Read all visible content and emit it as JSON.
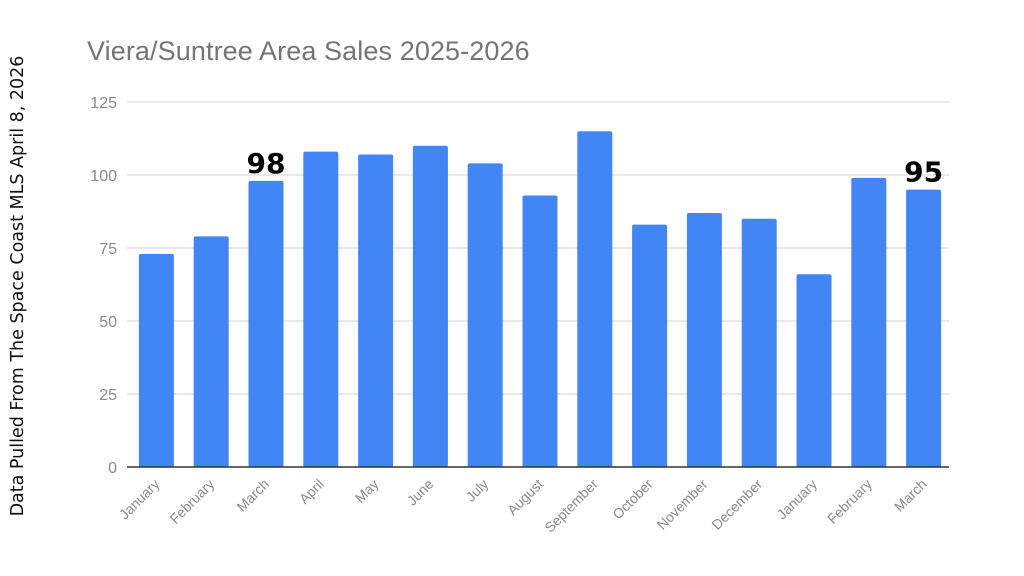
{
  "side_note": "Data Pulled From The Space Coast MLS April 8, 2026",
  "chart_data": {
    "type": "bar",
    "title": "Viera/Suntree Area Sales 2025-2026",
    "xlabel": "",
    "ylabel": "",
    "categories": [
      "January",
      "February",
      "March",
      "April",
      "May",
      "June",
      "July",
      "August",
      "September",
      "October",
      "November",
      "December",
      "January",
      "February",
      "March"
    ],
    "values": [
      73,
      79,
      98,
      108,
      107,
      110,
      104,
      93,
      115,
      83,
      87,
      85,
      66,
      99,
      95
    ],
    "ylim": [
      0,
      125
    ],
    "yticks": [
      0,
      25,
      50,
      75,
      100,
      125
    ],
    "grid": true,
    "legend": "none",
    "annotations": [
      {
        "index": 2,
        "text": "98"
      },
      {
        "index": 14,
        "text": "95"
      }
    ],
    "colors": {
      "bar": "#4285f4",
      "grid": "#d9d9d9",
      "axis": "#333333",
      "tick_text": "#8a8a8a",
      "title": "#757575"
    }
  }
}
